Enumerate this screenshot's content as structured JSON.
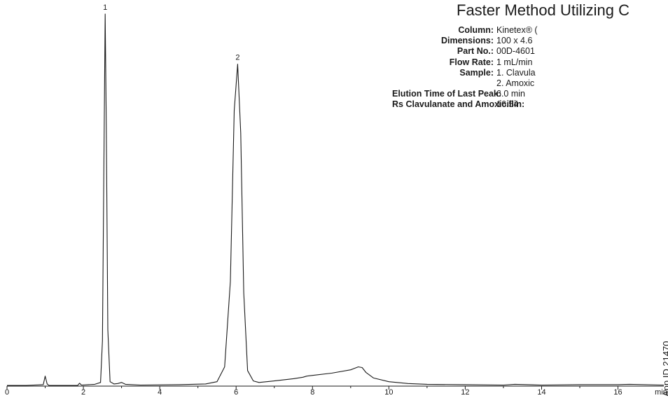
{
  "chart_data": {
    "type": "line",
    "title": "Faster Method Utilizing C",
    "xlabel": "min",
    "ylabel": "",
    "xlim": [
      0,
      17.2
    ],
    "ylim": [
      0,
      1
    ],
    "grid": false,
    "x_ticks": [
      0,
      2,
      4,
      6,
      8,
      10,
      12,
      14,
      16
    ],
    "x_minor_step": 1,
    "peaks": [
      {
        "label": "1",
        "x": 2.57,
        "y": 1.0
      },
      {
        "label": "2",
        "x": 6.04,
        "y": 0.865
      }
    ],
    "series": [
      {
        "x": [
          0,
          0.5,
          0.95,
          1.0,
          1.05,
          1.1,
          1.5,
          1.85,
          1.9,
          1.95,
          2.3,
          2.45,
          2.5,
          2.54,
          2.57,
          2.6,
          2.64,
          2.7,
          2.8,
          2.9,
          3.0,
          3.1,
          3.5,
          4.5,
          5.2,
          5.5,
          5.7,
          5.85,
          5.95,
          6.04,
          6.12,
          6.2,
          6.3,
          6.45,
          6.6,
          7.0,
          7.5,
          7.75,
          7.85,
          8.0,
          8.5,
          9.0,
          9.2,
          9.3,
          9.4,
          9.6,
          10.0,
          10.5,
          11.0,
          12.0,
          13.0,
          13.3,
          14.0,
          15.0,
          16.0,
          16.3,
          17.2
        ],
        "y": [
          0.0,
          0.0,
          0.002,
          0.025,
          0.004,
          0.0,
          0.0,
          0.0,
          0.006,
          0.001,
          0.003,
          0.008,
          0.12,
          0.62,
          1.0,
          0.7,
          0.15,
          0.01,
          0.004,
          0.005,
          0.008,
          0.003,
          0.001,
          0.002,
          0.004,
          0.01,
          0.05,
          0.28,
          0.74,
          0.865,
          0.68,
          0.25,
          0.04,
          0.012,
          0.008,
          0.012,
          0.018,
          0.022,
          0.025,
          0.027,
          0.033,
          0.042,
          0.05,
          0.048,
          0.035,
          0.02,
          0.01,
          0.005,
          0.003,
          0.002,
          0.001,
          0.003,
          0.001,
          0.002,
          0.002,
          0.003,
          0.001
        ]
      }
    ]
  },
  "info": {
    "rows": [
      {
        "label": "Column:",
        "value": "Kinetex® ("
      },
      {
        "label": "Dimensions:",
        "value": "100 x 4.6"
      },
      {
        "label": "Part No.:",
        "value": "00D-4601"
      },
      {
        "label": "Flow Rate:",
        "value": "1 mL/min"
      },
      {
        "label": "Sample:",
        "value": "1. Clavula"
      },
      {
        "label": "",
        "value": "2. Amoxic"
      },
      {
        "label": "Elution Time of Last Peak:",
        "value": "6.0 min"
      },
      {
        "label": "Rs Clavulanate and Amoxicillin:",
        "value": "16.54"
      }
    ]
  },
  "app_id": "App ID 21470"
}
